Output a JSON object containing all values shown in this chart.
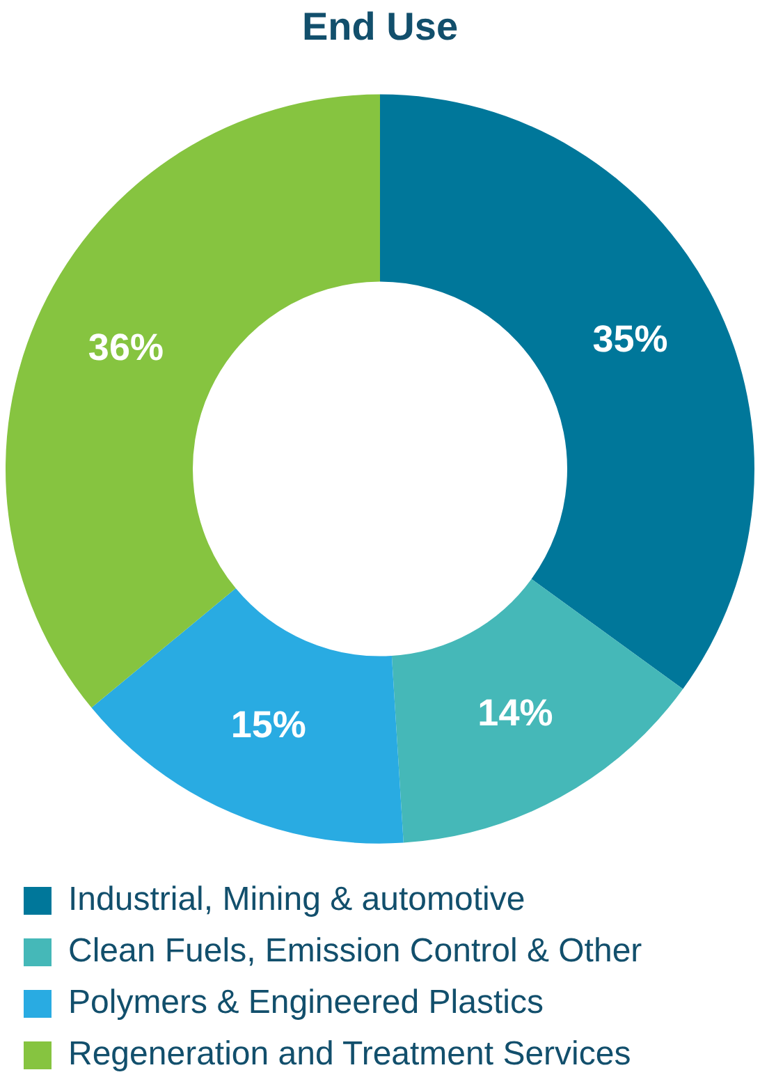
{
  "chart_data": {
    "type": "donut",
    "title": "End Use",
    "categories": [
      "Industrial, Mining & automotive",
      "Clean Fuels, Emission Control & Other",
      "Polymers & Engineered Plastics",
      "Regeneration and Treatment Services"
    ],
    "values": [
      35,
      14,
      15,
      36
    ],
    "colors": [
      "#00779a",
      "#45b8b8",
      "#29abe2",
      "#86c440"
    ],
    "value_labels": [
      "35%",
      "14%",
      "15%",
      "36%"
    ],
    "legend": "bottom"
  }
}
